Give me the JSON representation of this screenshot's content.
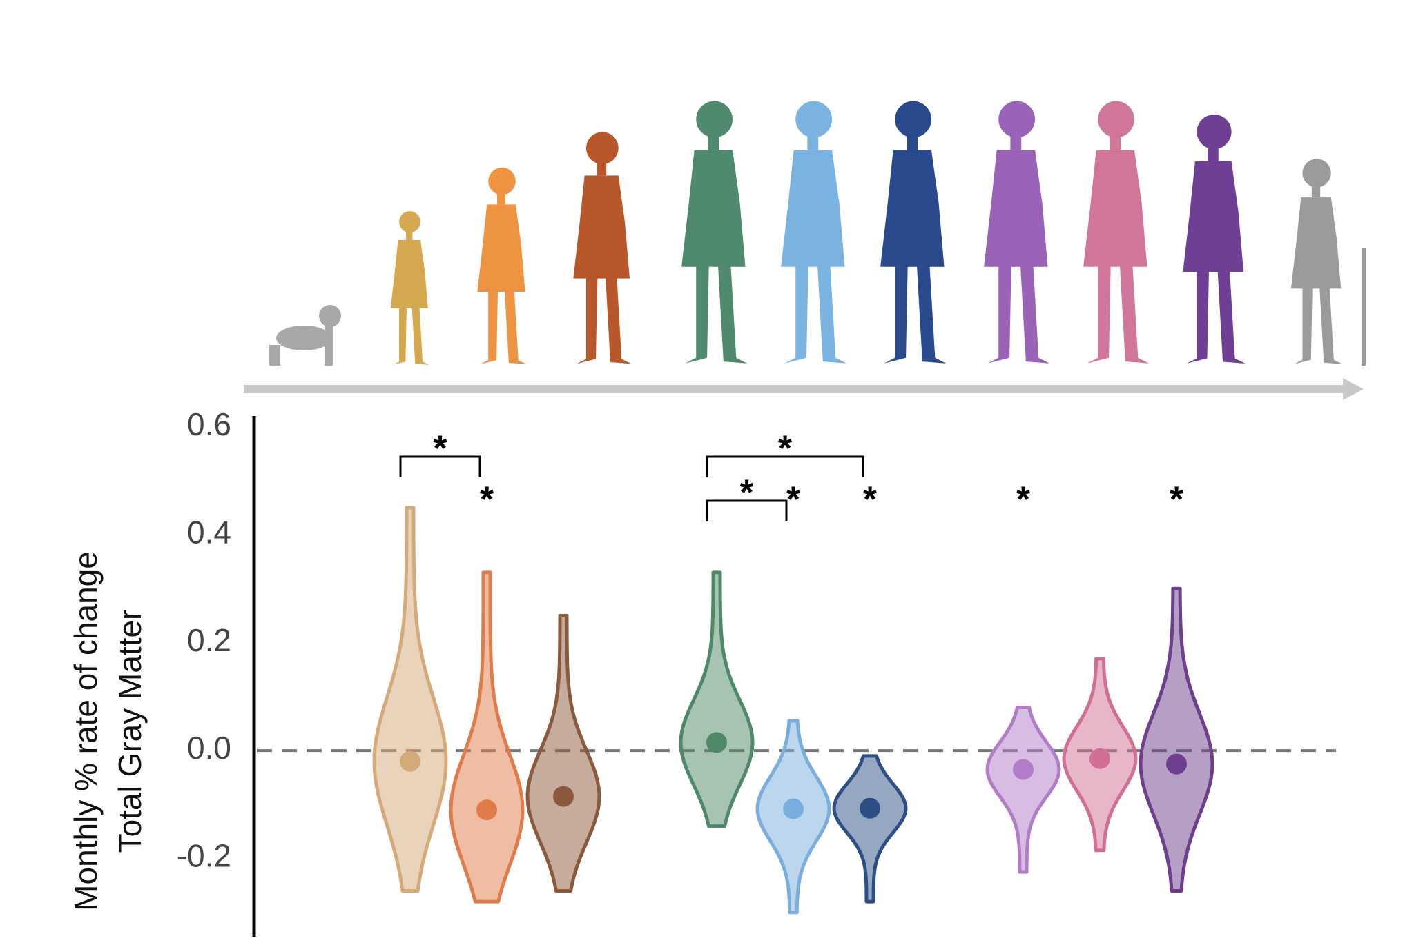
{
  "chart_data": {
    "type": "violin",
    "y_label": [
      "Monthly % rate of change",
      "Total Gray Matter"
    ],
    "ylim": [
      -0.345,
      0.62
    ],
    "yticks": [
      0.6,
      0.4,
      0.2,
      {
        "value": 0,
        "label": "0.0"
      },
      -0.2
    ],
    "hline": 0,
    "colors": [
      "#d4aa78",
      "#e07b4a",
      "#8b5a3c",
      "#4f8a68",
      "#7aaedc",
      "#2e4f85",
      "#b27cc8",
      "#d06f93",
      "#6e3f8c"
    ],
    "values": [
      -0.02,
      -0.11,
      -0.085,
      0.015,
      -0.108,
      -0.107,
      -0.035,
      -0.015,
      -0.025
    ],
    "maxs": [
      0.45,
      0.33,
      0.25,
      0.33,
      0.055,
      -0.01,
      0.08,
      0.17,
      0.3
    ],
    "mins": [
      -0.26,
      -0.28,
      -0.26,
      -0.14,
      -0.3,
      -0.28,
      -0.225,
      -0.185,
      -0.26
    ],
    "brackets": [
      {
        "label": "*",
        "from": 0,
        "to": 1
      },
      {
        "label": "*",
        "from": 3,
        "to": 5
      },
      {
        "label": "*",
        "from": 3,
        "to": 4
      }
    ],
    "stars": [
      {
        "label": "*",
        "index": 1
      },
      {
        "label": "*",
        "index": 4
      },
      {
        "label": "*",
        "index": 5
      },
      {
        "label": "*",
        "index": 6
      },
      {
        "label": "*",
        "index": 8
      }
    ]
  }
}
